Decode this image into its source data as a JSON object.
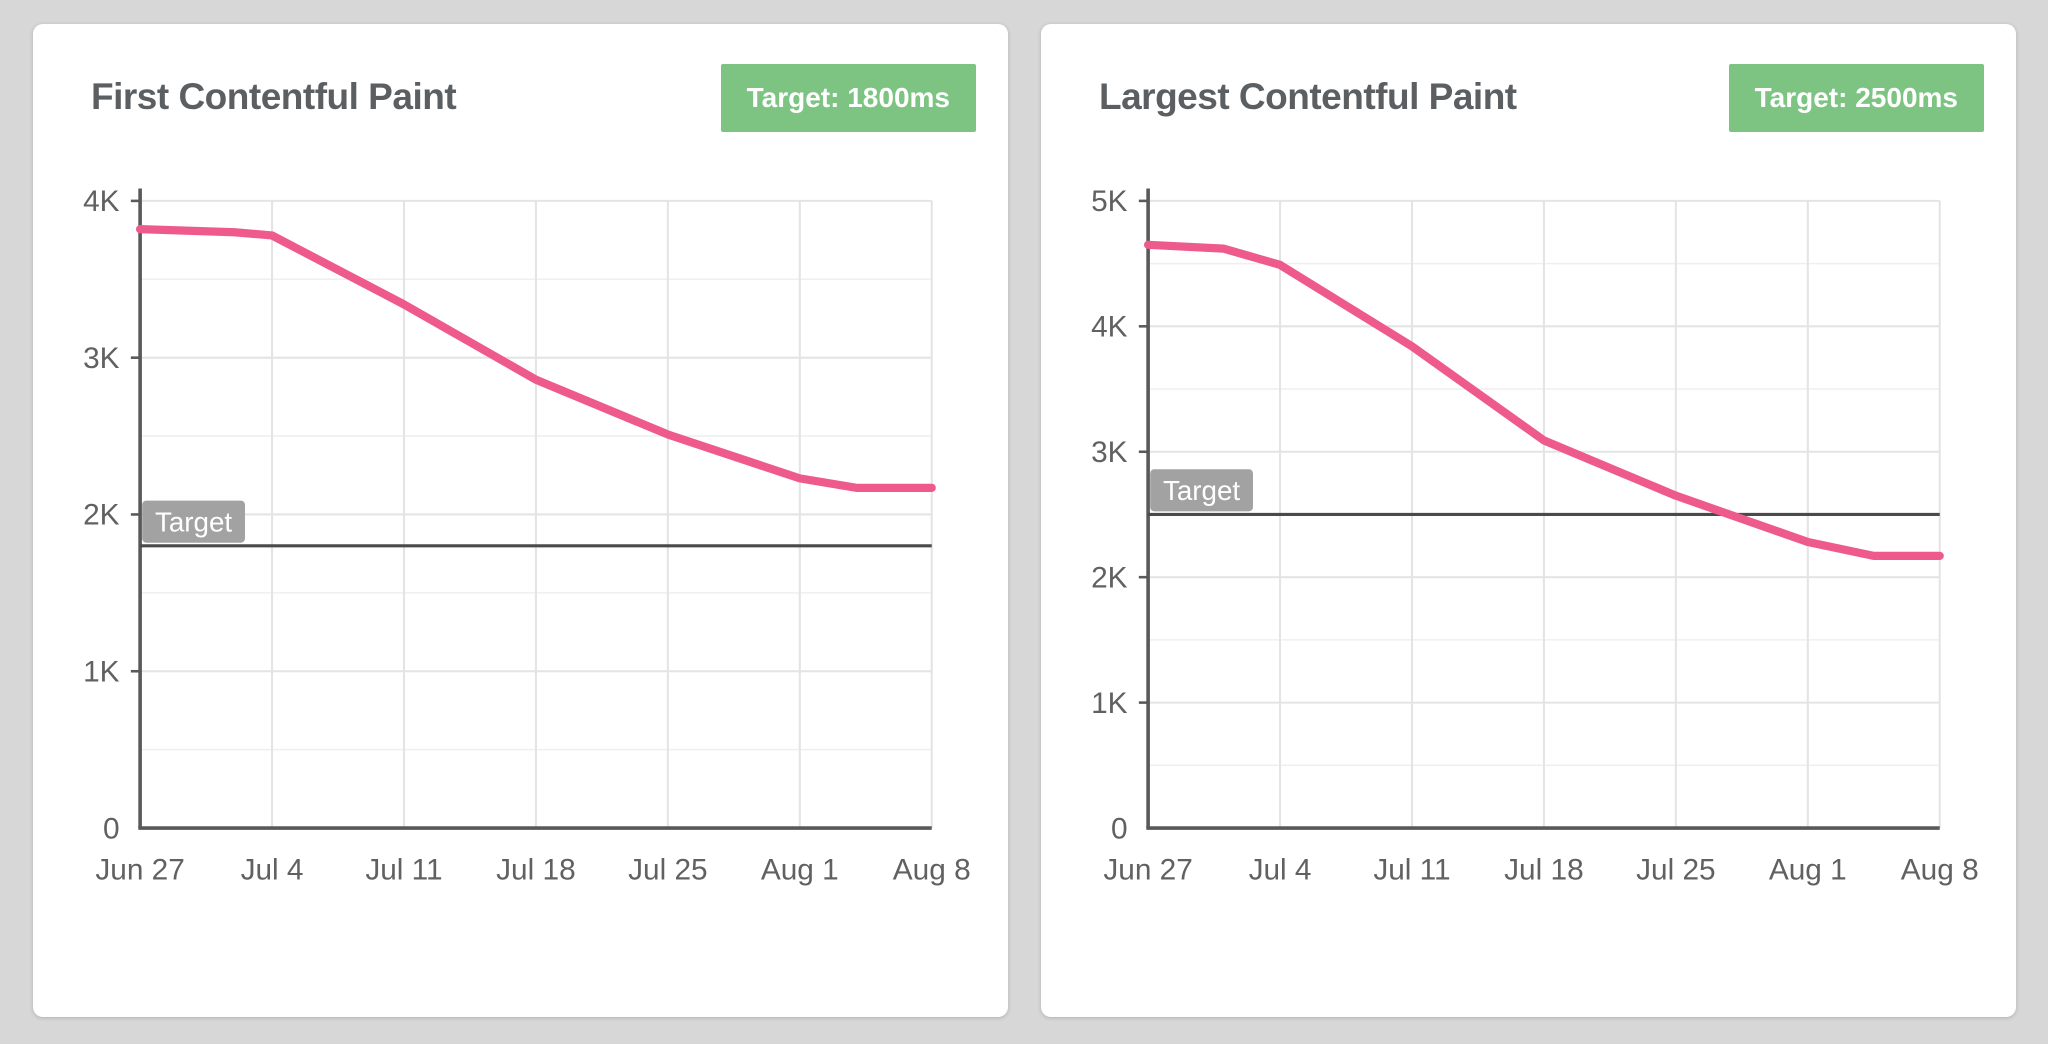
{
  "page": {
    "background": "#d7d7d7"
  },
  "colors": {
    "card_bg": "#ffffff",
    "title_text": "#5c5f62",
    "badge_bg": "#7dc483",
    "badge_text": "#ffffff",
    "line": "#ee5a8c",
    "axis": "#58595b",
    "grid_major": "#e4e4e4",
    "grid_minor": "#efefef",
    "target_line": "#4a4a4a",
    "target_label_bg": "#9d9d9d",
    "target_label_text": "#ffffff",
    "tick_text": "#616161"
  },
  "chart_data": [
    {
      "type": "line",
      "title": "First Contentful Paint",
      "badge_label": "Target: 1800ms",
      "metric_unit": "ms",
      "target_ms": 1800,
      "target_annotation": "Target",
      "x_tick_labels": [
        "Jun 27",
        "Jul 4",
        "Jul 11",
        "Jul 18",
        "Jul 25",
        "Aug 1",
        "Aug 8"
      ],
      "y_tick_labels": [
        "0",
        "1K",
        "2K",
        "3K",
        "4K"
      ],
      "ylim": [
        0,
        4000
      ],
      "y_major_step": 1000,
      "y_minor_step": 500,
      "grid": true,
      "legend": "none",
      "values_at_ticks": [
        3820,
        3780,
        3340,
        2860,
        2510,
        2230,
        2170
      ],
      "points": [
        {
          "day": 0,
          "value": 3820
        },
        {
          "day": 5,
          "value": 3800
        },
        {
          "day": 7,
          "value": 3780
        },
        {
          "day": 14,
          "value": 3340
        },
        {
          "day": 21,
          "value": 2860
        },
        {
          "day": 28,
          "value": 2510
        },
        {
          "day": 35,
          "value": 2230
        },
        {
          "day": 38,
          "value": 2170
        },
        {
          "day": 42,
          "value": 2170
        }
      ]
    },
    {
      "type": "line",
      "title": "Largest Contentful Paint",
      "badge_label": "Target: 2500ms",
      "metric_unit": "ms",
      "target_ms": 2500,
      "target_annotation": "Target",
      "x_tick_labels": [
        "Jun 27",
        "Jul 4",
        "Jul 11",
        "Jul 18",
        "Jul 25",
        "Aug 1",
        "Aug 8"
      ],
      "y_tick_labels": [
        "0",
        "1K",
        "2K",
        "3K",
        "4K",
        "5K"
      ],
      "ylim": [
        0,
        5000
      ],
      "y_major_step": 1000,
      "y_minor_step": 500,
      "grid": true,
      "legend": "none",
      "values_at_ticks": [
        4650,
        4490,
        3840,
        3090,
        2650,
        2280,
        2170
      ],
      "points": [
        {
          "day": 0,
          "value": 4650
        },
        {
          "day": 4,
          "value": 4620
        },
        {
          "day": 7,
          "value": 4490
        },
        {
          "day": 14,
          "value": 3840
        },
        {
          "day": 21,
          "value": 3090
        },
        {
          "day": 28,
          "value": 2650
        },
        {
          "day": 35,
          "value": 2280
        },
        {
          "day": 38.5,
          "value": 2170
        },
        {
          "day": 42,
          "value": 2170
        }
      ]
    }
  ]
}
